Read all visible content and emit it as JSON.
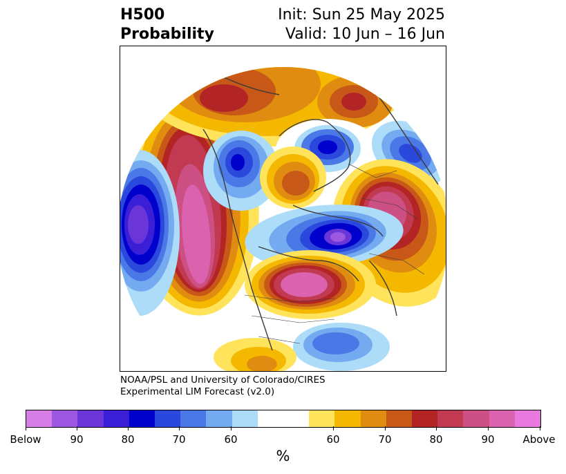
{
  "title": {
    "left_line1": "H500",
    "left_line2": "Probability",
    "right_line1": "Init: Sun 25 May 2025",
    "right_line2": "Valid: 10 Jun – 16 Jun"
  },
  "credit": {
    "line1": "NOAA/PSL and University of Colorado/CIRES",
    "line2": "Experimental LIM Forecast (v2.0)"
  },
  "colorbar": {
    "colors": [
      "#d67de6",
      "#9c58e0",
      "#6a36d8",
      "#3a1fd6",
      "#0000cc",
      "#2a48db",
      "#4a78e6",
      "#74aaf0",
      "#acdcf8",
      "#ffffff",
      "#ffffff",
      "#ffe35a",
      "#f5b800",
      "#e08c10",
      "#c85818",
      "#b32424",
      "#c23a52",
      "#cd5084",
      "#db62ae",
      "#e87ade"
    ],
    "tick_labels": [
      "Below",
      "90",
      "80",
      "70",
      "60",
      "60",
      "70",
      "80",
      "90",
      "Above"
    ],
    "unit": "%"
  },
  "colors": {
    "below_strong": "#0000cc",
    "below_extreme": "#9c58e0",
    "above_strong": "#b32424",
    "above_extreme": "#db62ae",
    "coast": "#3a3a3a"
  }
}
